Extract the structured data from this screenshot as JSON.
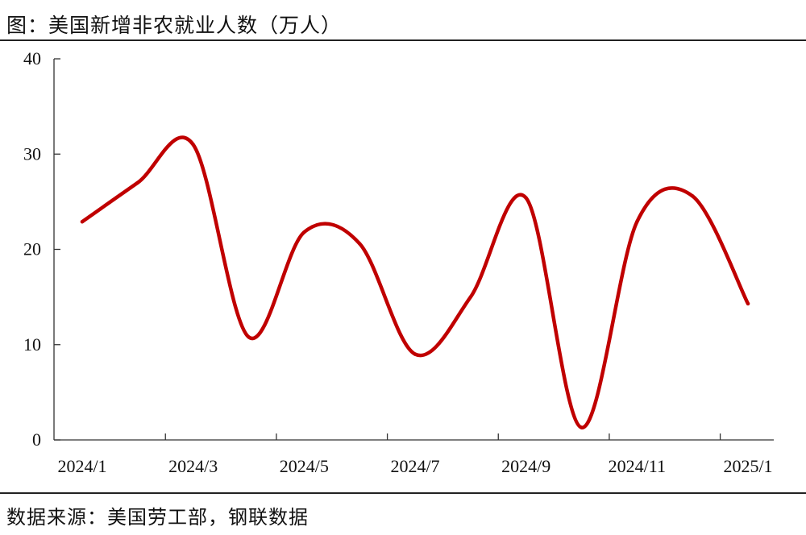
{
  "header": {
    "title": "图：美国新增非农就业人数（万人）"
  },
  "footer": {
    "source": "数据来源：美国劳工部，钢联数据"
  },
  "chart_data": {
    "type": "line",
    "title": "美国新增非农就业人数（万人）",
    "xlabel": "",
    "ylabel": "",
    "categories": [
      "2024/1",
      "2024/2",
      "2024/3",
      "2024/4",
      "2024/5",
      "2024/6",
      "2024/7",
      "2024/8",
      "2024/9",
      "2024/10",
      "2024/11",
      "2024/12",
      "2025/1"
    ],
    "x_tick_labels": [
      "2024/1",
      "2024/3",
      "2024/5",
      "2024/7",
      "2024/9",
      "2024/11",
      "2025/1"
    ],
    "y_ticks": [
      0,
      10,
      20,
      30,
      40
    ],
    "ylim": [
      0,
      40
    ],
    "grid": false,
    "legend": "none",
    "series": [
      {
        "values": [
          22.9,
          27.0,
          31.0,
          10.8,
          21.8,
          20.6,
          9.0,
          15.0,
          25.4,
          1.3,
          22.9,
          25.6,
          14.3
        ],
        "color": "#c00000"
      }
    ]
  }
}
